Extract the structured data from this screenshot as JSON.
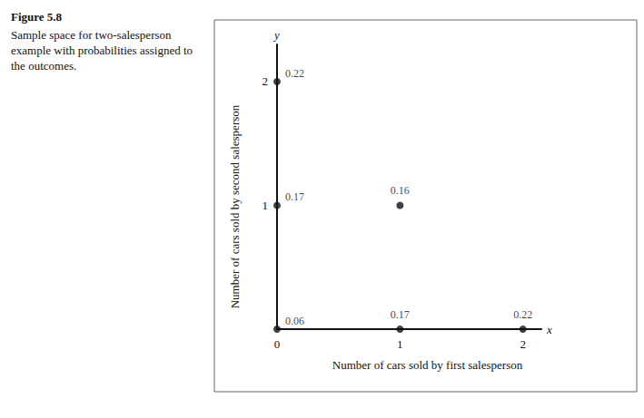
{
  "chart_data": {
    "type": "scatter",
    "title": "Figure 5.8",
    "subtitle": "Sample space for two-salesperson example with probabilities assigned to the outcomes.",
    "xlabel": "Number of cars sold by first salesperson",
    "ylabel": "Number of cars sold by second salesperson",
    "axis_symbols": {
      "x": "x",
      "y": "y"
    },
    "x": [
      0,
      1,
      2,
      0,
      1,
      0
    ],
    "values": [
      0,
      0,
      0,
      1,
      1,
      2
    ],
    "probabilities": [
      0.06,
      0.17,
      0.22,
      0.17,
      0.16,
      0.22
    ],
    "color": "#111111",
    "marker": "circle",
    "xlim": [
      0,
      2.15
    ],
    "xticks": [
      0,
      1,
      2
    ],
    "ylim": [
      0,
      2.3
    ],
    "yticks": [
      1,
      2
    ],
    "grid": false
  }
}
